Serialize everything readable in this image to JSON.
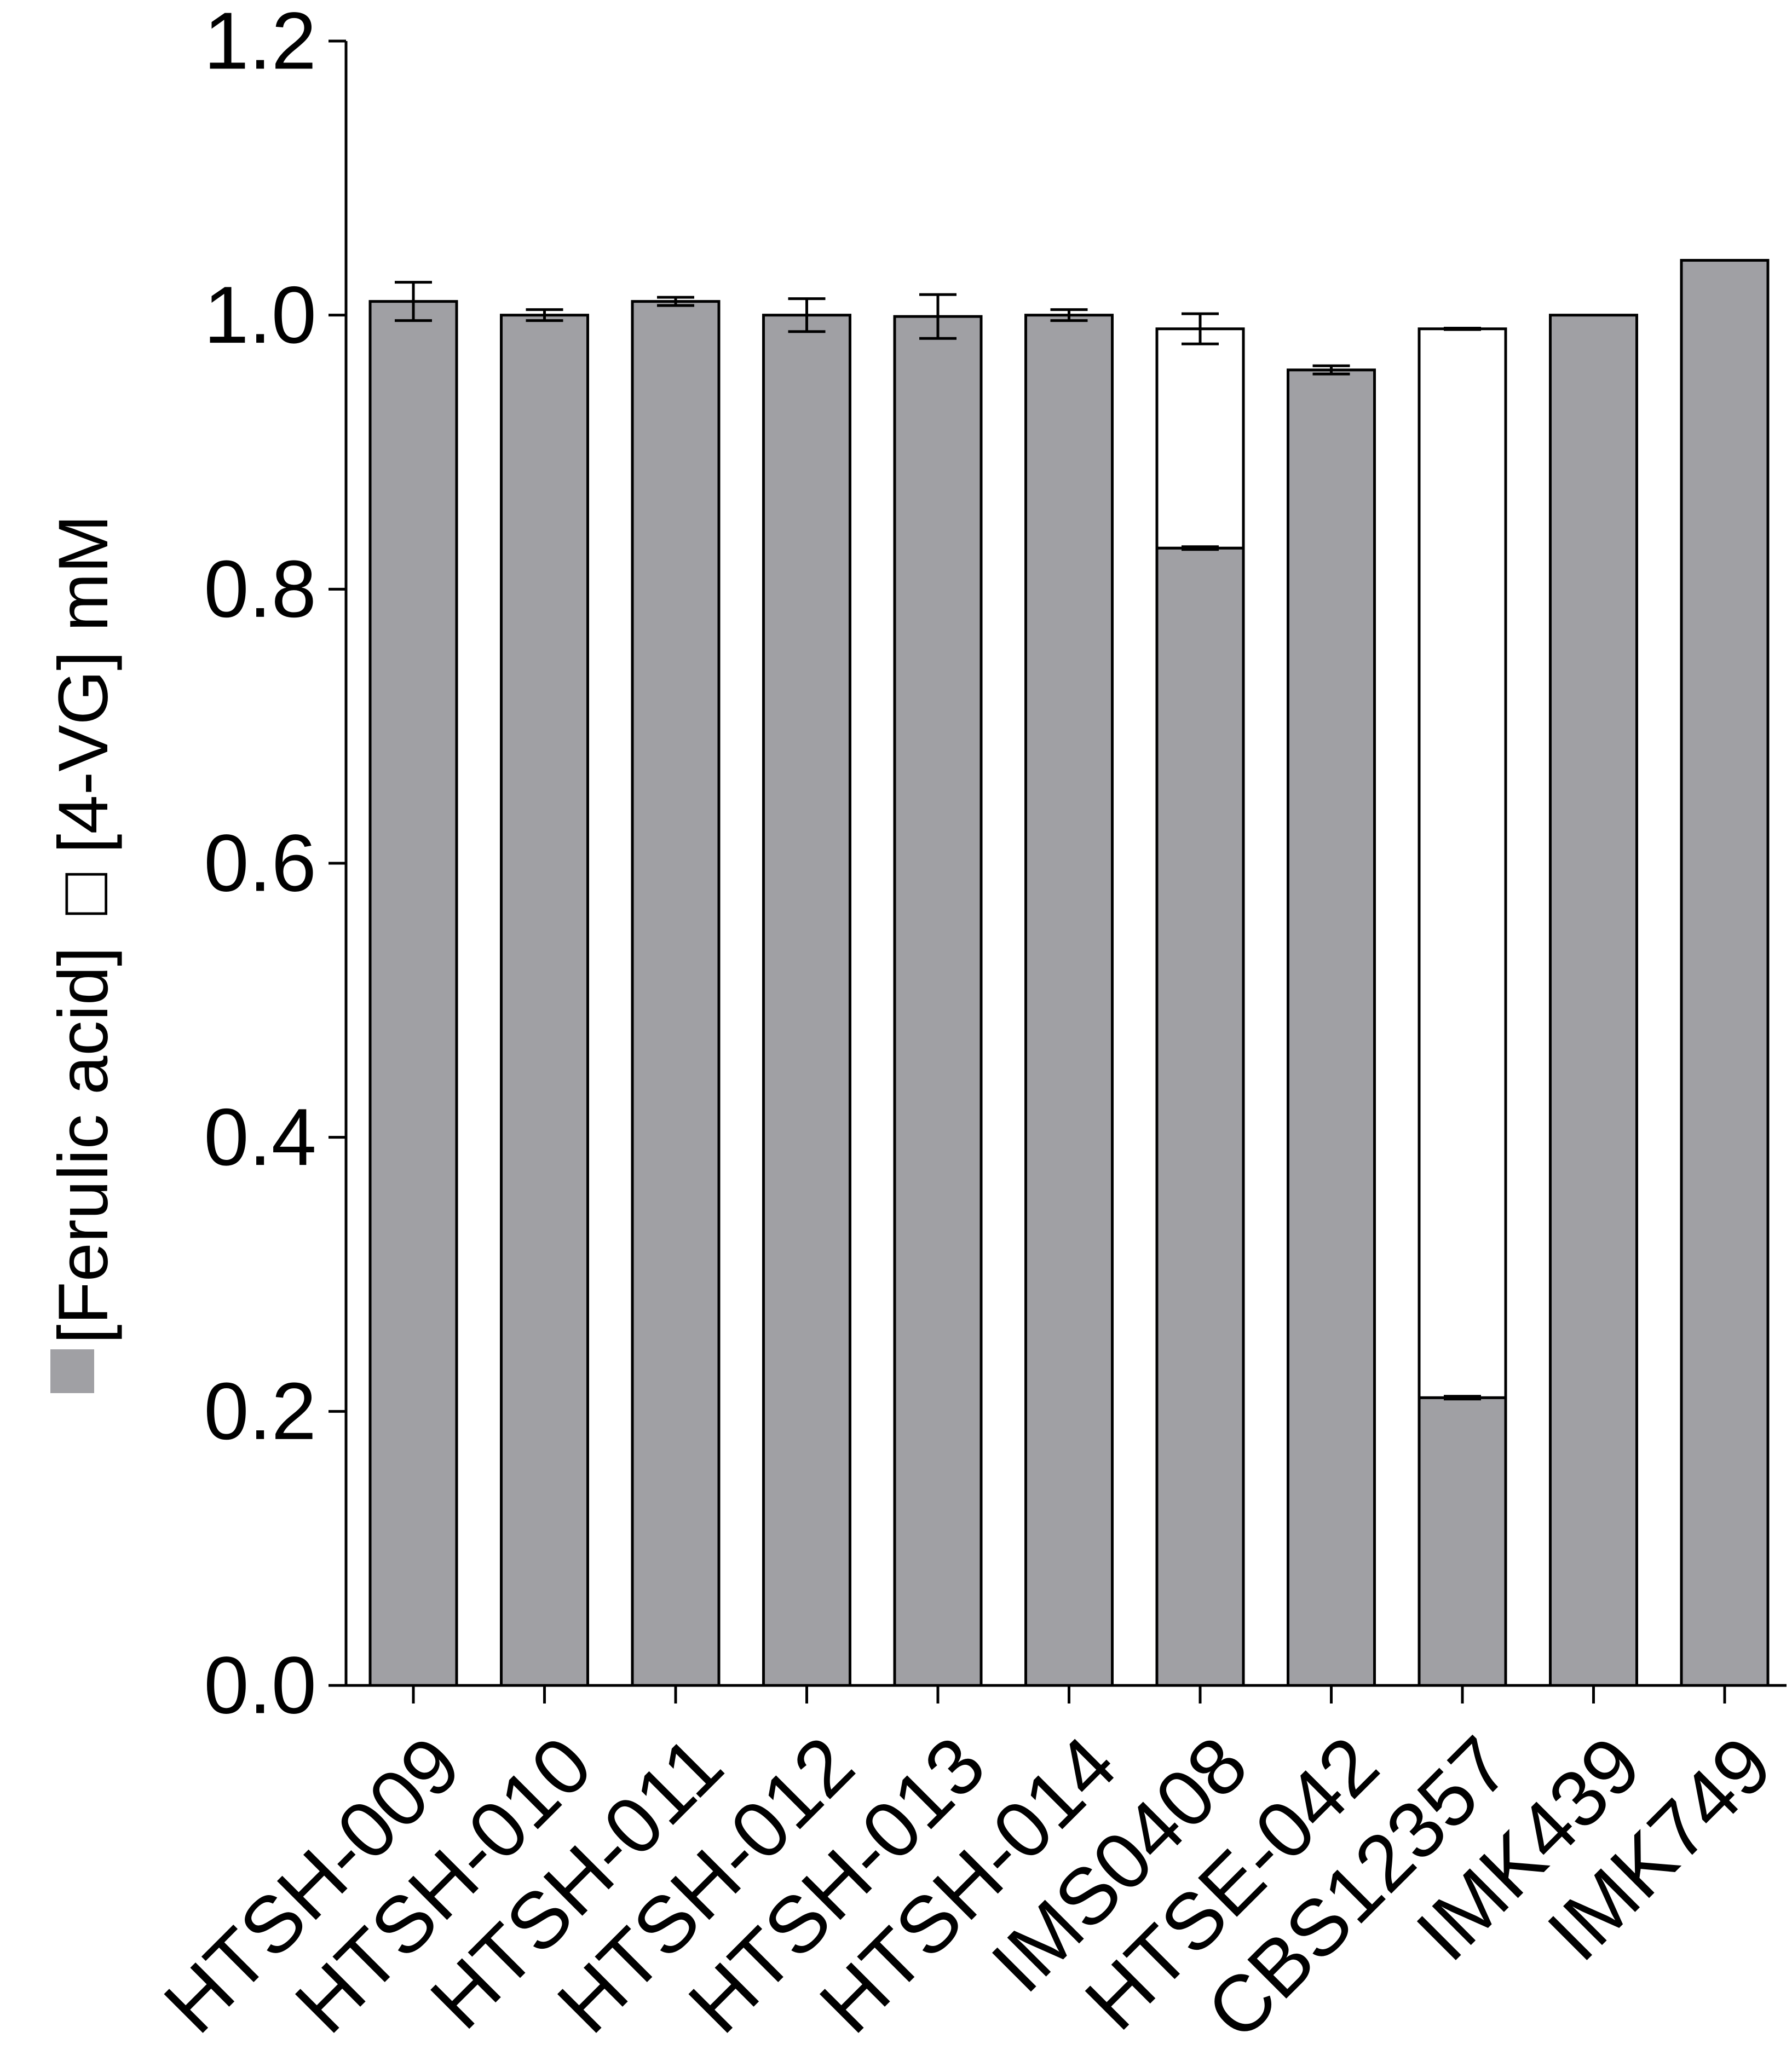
{
  "chart_data": {
    "type": "bar",
    "stacked": true,
    "title": "",
    "xlabel": "",
    "ylabel": "[Ferulic acid] □[4-VG] mM",
    "ylabel_parts": {
      "series1": "[Ferulic acid]",
      "series2": "[4-VG] mM"
    },
    "ylim": [
      0,
      1.2
    ],
    "yticks": [
      "0.0",
      "0.2",
      "0.4",
      "0.6",
      "0.8",
      "1.0",
      "1.2"
    ],
    "grid": false,
    "categories": [
      "HTSH-009",
      "HTSH-010",
      "HTSH-011",
      "HTSH-012",
      "HTSH-013",
      "HTSH-014",
      "IMS0408",
      "HTSE-042",
      "CBS12357",
      "IMK439",
      "IMK749"
    ],
    "series": [
      {
        "name": "[Ferulic acid]",
        "color": "#a0a0a4",
        "values": [
          1.01,
          1.0,
          1.01,
          1.0,
          0.999,
          1.0,
          0.83,
          0.96,
          0.21,
          1.0,
          1.04
        ],
        "errors": [
          0.014,
          0.004,
          0.003,
          0.012,
          0.016,
          0.004,
          0.001,
          0.003,
          0.001,
          0,
          0
        ]
      },
      {
        "name": "[4-VG]",
        "color": "#ffffff",
        "values": [
          0,
          0,
          0,
          0,
          0,
          0,
          0.16,
          0,
          0.78,
          0,
          0
        ],
        "errors": [
          0,
          0,
          0,
          0,
          0,
          0,
          0.011,
          0,
          0.0005,
          0,
          0
        ]
      }
    ]
  }
}
